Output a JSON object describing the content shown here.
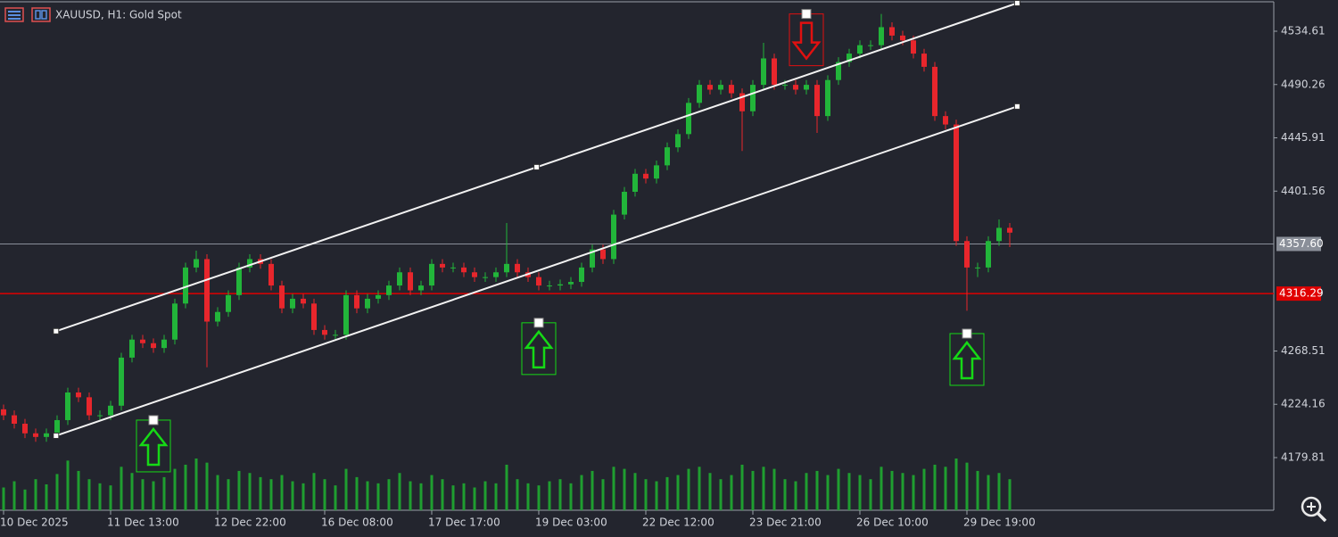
{
  "chart_data": {
    "type": "candlestick",
    "title": "XAUUSD, H1:  Gold Spot",
    "open": [
      4220,
      4215,
      4208,
      4200,
      4197,
      4200,
      4211,
      4234,
      4230,
      4215,
      4215,
      4223,
      4263,
      4278,
      4275,
      4271,
      4278,
      4308,
      4338,
      4345,
      4293,
      4301,
      4315,
      4338,
      4345,
      4341,
      4323,
      4304,
      4312,
      4308,
      4286,
      4282,
      4282,
      4315,
      4304,
      4312,
      4315,
      4323,
      4334,
      4319,
      4323,
      4341,
      4338,
      4338,
      4334,
      4330,
      4330,
      4334,
      4341,
      4334,
      4330,
      4323,
      4323,
      4324,
      4326,
      4338,
      4353,
      4345,
      4382,
      4401,
      4416,
      4412,
      4423,
      4438,
      4449,
      4475,
      4490,
      4486,
      4490,
      4483,
      4468,
      4490,
      4512,
      4490,
      4490,
      4486,
      4490,
      4464,
      4494,
      4509,
      4516,
      4523,
      4523,
      4538,
      4531,
      4527,
      4516,
      4505,
      4464,
      4457,
      4360,
      4338,
      4338,
      4360,
      4371
    ],
    "high": [
      4224,
      4219,
      4212,
      4204,
      4204,
      4215,
      4238,
      4238,
      4234,
      4219,
      4227,
      4267,
      4282,
      4282,
      4279,
      4282,
      4312,
      4342,
      4352,
      4349,
      4305,
      4319,
      4342,
      4349,
      4349,
      4345,
      4327,
      4316,
      4316,
      4312,
      4290,
      4286,
      4319,
      4319,
      4316,
      4319,
      4327,
      4338,
      4338,
      4327,
      4345,
      4345,
      4342,
      4342,
      4338,
      4334,
      4338,
      4375,
      4345,
      4338,
      4334,
      4327,
      4328,
      4330,
      4342,
      4357,
      4357,
      4386,
      4405,
      4420,
      4420,
      4427,
      4442,
      4453,
      4479,
      4494,
      4494,
      4494,
      4494,
      4487,
      4494,
      4525,
      4516,
      4494,
      4494,
      4494,
      4494,
      4498,
      4513,
      4520,
      4527,
      4527,
      4549,
      4542,
      4535,
      4531,
      4520,
      4509,
      4468,
      4461,
      4364,
      4342,
      4364,
      4378,
      4375
    ],
    "low": [
      4211,
      4204,
      4196,
      4193,
      4193,
      4196,
      4207,
      4226,
      4211,
      4211,
      4211,
      4219,
      4259,
      4271,
      4267,
      4267,
      4274,
      4304,
      4334,
      4255,
      4289,
      4297,
      4311,
      4334,
      4337,
      4319,
      4300,
      4300,
      4304,
      4282,
      4278,
      4278,
      4278,
      4300,
      4300,
      4308,
      4311,
      4319,
      4315,
      4315,
      4319,
      4334,
      4334,
      4330,
      4326,
      4326,
      4326,
      4330,
      4330,
      4326,
      4319,
      4319,
      4319,
      4320,
      4322,
      4334,
      4341,
      4341,
      4378,
      4397,
      4408,
      4408,
      4419,
      4434,
      4445,
      4471,
      4482,
      4482,
      4479,
      4435,
      4464,
      4486,
      4486,
      4486,
      4482,
      4482,
      4450,
      4460,
      4490,
      4505,
      4512,
      4519,
      4519,
      4527,
      4523,
      4512,
      4501,
      4460,
      4453,
      4356,
      4302,
      4330,
      4334,
      4356,
      4355
    ],
    "close": [
      4215,
      4208,
      4200,
      4197,
      4200,
      4211,
      4234,
      4230,
      4215,
      4215,
      4223,
      4263,
      4278,
      4275,
      4271,
      4278,
      4308,
      4338,
      4345,
      4293,
      4301,
      4315,
      4338,
      4345,
      4341,
      4323,
      4304,
      4312,
      4308,
      4286,
      4282,
      4282,
      4315,
      4304,
      4312,
      4315,
      4323,
      4334,
      4319,
      4323,
      4341,
      4338,
      4338,
      4334,
      4330,
      4330,
      4334,
      4341,
      4334,
      4330,
      4323,
      4323,
      4324,
      4326,
      4338,
      4353,
      4345,
      4382,
      4401,
      4416,
      4412,
      4423,
      4438,
      4449,
      4475,
      4490,
      4486,
      4490,
      4483,
      4468,
      4490,
      4512,
      4490,
      4490,
      4486,
      4490,
      4464,
      4494,
      4509,
      4516,
      4523,
      4523,
      4538,
      4531,
      4527,
      4516,
      4505,
      4464,
      4457,
      4360,
      4338,
      4338,
      4360,
      4371,
      4367
    ],
    "volume": [
      22,
      28,
      20,
      30,
      25,
      35,
      48,
      38,
      30,
      26,
      24,
      42,
      36,
      30,
      28,
      32,
      40,
      44,
      50,
      46,
      34,
      30,
      38,
      36,
      32,
      30,
      34,
      28,
      26,
      36,
      30,
      24,
      40,
      32,
      28,
      26,
      30,
      36,
      28,
      26,
      34,
      30,
      24,
      26,
      22,
      28,
      26,
      44,
      30,
      26,
      24,
      28,
      30,
      26,
      34,
      38,
      30,
      42,
      40,
      36,
      30,
      28,
      32,
      34,
      40,
      42,
      36,
      30,
      34,
      44,
      38,
      42,
      40,
      30,
      28,
      36,
      38,
      34,
      40,
      36,
      34,
      30,
      42,
      38,
      36,
      34,
      40,
      44,
      42,
      50,
      46,
      38,
      34,
      36,
      30
    ],
    "xticks": [
      {
        "value": 0,
        "label": "10 Dec 2025"
      },
      {
        "value": 10,
        "label": "11 Dec 13:00"
      },
      {
        "value": 20,
        "label": "12 Dec 22:00"
      },
      {
        "value": 30,
        "label": "16 Dec 08:00"
      },
      {
        "value": 40,
        "label": "17 Dec 17:00"
      },
      {
        "value": 50,
        "label": "19 Dec 03:00"
      },
      {
        "value": 60,
        "label": "22 Dec 12:00"
      },
      {
        "value": 70,
        "label": "23 Dec 21:00"
      },
      {
        "value": 80,
        "label": "26 Dec 10:00"
      },
      {
        "value": 90,
        "label": "29 Dec 19:00"
      }
    ],
    "ylim": [
      4136,
      4560.6
    ],
    "yticks": [
      4534.61,
      4490.26,
      4445.91,
      4401.56,
      4268.51,
      4224.16,
      4179.81
    ],
    "levels": [
      {
        "value": 4357.6,
        "label": "4357.60",
        "color": "#8a8f99"
      },
      {
        "value": 4316.29,
        "label": "4316.29",
        "color": "#e00000"
      }
    ],
    "trendlines": [
      {
        "x": [
          4.9,
          94.7
        ],
        "y": [
          4285,
          4558
        ]
      },
      {
        "x": [
          4.9,
          94.7
        ],
        "y": [
          4198,
          4472
        ]
      }
    ],
    "signals": [
      {
        "direction": "up",
        "index": 14,
        "price": 4211,
        "color": "#16d916"
      },
      {
        "direction": "up",
        "index": 50,
        "price": 4292,
        "color": "#16d916"
      },
      {
        "direction": "up",
        "index": 90,
        "price": 4283,
        "color": "#16d916"
      },
      {
        "direction": "down",
        "index": 75,
        "price": 4549,
        "color": "#e01010"
      }
    ],
    "up_color": "#22b53a",
    "down_color": "#e8262c",
    "volume_color": "#1f9e30"
  }
}
